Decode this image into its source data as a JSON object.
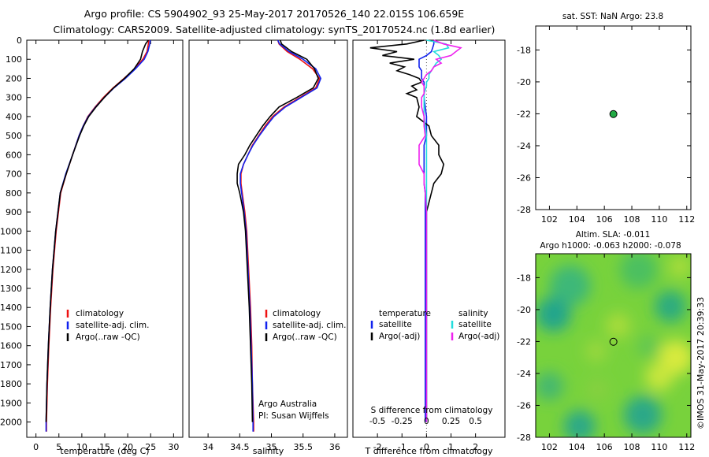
{
  "title_line1": "Argo profile: CS 5904902_93 25-May-2017 20170526_140 22.015S 106.659E",
  "title_line2": "Climatology: CARS2009. Satellite-adjusted climatology: synTS_20170524.nc (1.8d earlier)",
  "colors": {
    "climatology": "#ee1111",
    "satellite": "#1122ee",
    "argo": "#000000",
    "sat_salinity": "#22dddd",
    "argo_adj_salinity": "#ee22ee",
    "map_marker": "#22aa44"
  },
  "chart_data": [
    {
      "type": "line",
      "name": "temperature-profile",
      "xlabel": "temperature (deg C)",
      "ylabel": "",
      "xlim": [
        -2,
        32
      ],
      "ylim": [
        2080,
        0
      ],
      "xticks": [
        0,
        5,
        10,
        15,
        20,
        25,
        30
      ],
      "yticks": [
        0,
        100,
        200,
        300,
        400,
        500,
        600,
        700,
        800,
        900,
        1000,
        1100,
        1200,
        1300,
        1400,
        1500,
        1600,
        1700,
        1800,
        1900,
        2000
      ],
      "legend": [
        "climatology",
        "satellite-adj. clim.",
        "Argo(..raw -QC)"
      ],
      "depth": [
        0,
        20,
        60,
        100,
        150,
        200,
        250,
        300,
        350,
        400,
        450,
        500,
        600,
        700,
        800,
        900,
        1000,
        1200,
        1400,
        1600,
        1800,
        2000,
        2050
      ],
      "series": [
        {
          "name": "climatology",
          "values": [
            24.6,
            24.5,
            24.2,
            23.3,
            21.5,
            19.2,
            16.8,
            14.7,
            12.9,
            11.3,
            10.3,
            9.4,
            8.0,
            6.6,
            5.4,
            4.9,
            4.4,
            3.7,
            3.2,
            2.8,
            2.5,
            2.3,
            2.3
          ]
        },
        {
          "name": "satellite-adj. clim.",
          "values": [
            24.9,
            24.8,
            24.4,
            23.6,
            21.7,
            19.5,
            17.0,
            14.9,
            13.0,
            11.4,
            10.3,
            9.4,
            8.0,
            6.5,
            5.3,
            4.8,
            4.3,
            3.6,
            3.1,
            2.7,
            2.4,
            2.2,
            2.2
          ]
        },
        {
          "name": "Argo(..raw -QC)",
          "values": [
            24.5,
            23.9,
            23.2,
            22.8,
            21.4,
            19.3,
            16.9,
            14.9,
            13.1,
            11.5,
            10.4,
            9.5,
            8.0,
            6.6,
            5.3,
            4.8,
            4.3,
            3.6,
            3.1,
            2.7,
            2.4,
            2.2,
            null
          ]
        }
      ]
    },
    {
      "type": "line",
      "name": "salinity-profile",
      "xlabel": "salinity",
      "xlim": [
        33.7,
        36.2
      ],
      "ylim": [
        2080,
        0
      ],
      "xticks": [
        34,
        34.5,
        35,
        35.5,
        36
      ],
      "legend": [
        "climatology",
        "satellite-adj. clim.",
        "Argo(..raw -QC)"
      ],
      "annotation": [
        "Argo Australia",
        "PI: Susan Wijffels"
      ],
      "depth": [
        0,
        20,
        60,
        100,
        150,
        200,
        250,
        300,
        350,
        400,
        450,
        500,
        550,
        600,
        650,
        700,
        750,
        800,
        900,
        1000,
        1200,
        1400,
        1600,
        1800,
        2000,
        2050
      ],
      "series": [
        {
          "name": "climatology",
          "values": [
            35.1,
            35.12,
            35.25,
            35.45,
            35.65,
            35.76,
            35.7,
            35.45,
            35.2,
            35.02,
            34.9,
            34.8,
            34.7,
            34.63,
            34.56,
            34.52,
            34.52,
            34.54,
            34.58,
            34.61,
            34.64,
            34.67,
            34.69,
            34.7,
            34.72,
            34.72
          ]
        },
        {
          "name": "satellite-adj. clim.",
          "values": [
            35.1,
            35.13,
            35.28,
            35.5,
            35.7,
            35.78,
            35.72,
            35.47,
            35.22,
            35.04,
            34.92,
            34.81,
            34.71,
            34.63,
            34.56,
            34.51,
            34.51,
            34.53,
            34.57,
            34.6,
            34.63,
            34.66,
            34.68,
            34.7,
            34.71,
            34.71
          ]
        },
        {
          "name": "Argo(..raw -QC)",
          "values": [
            35.14,
            35.16,
            35.32,
            35.56,
            35.68,
            35.74,
            35.66,
            35.4,
            35.12,
            34.98,
            34.86,
            34.76,
            34.66,
            34.58,
            34.48,
            34.46,
            34.46,
            34.5,
            34.56,
            34.59,
            34.62,
            34.65,
            34.67,
            34.69,
            34.7,
            null
          ]
        }
      ]
    },
    {
      "type": "line",
      "name": "difference-profile",
      "xlabel": "T difference from climatology",
      "xlabel_top": "S difference from climatology",
      "xlim": [
        -3,
        3.2
      ],
      "ylim": [
        2080,
        0
      ],
      "xticks": [
        -2,
        -1,
        0,
        1,
        2
      ],
      "s_tick_labels": [
        "-0.5",
        "-0.25",
        "0",
        "0.25",
        "0.5"
      ],
      "s_tick_positions": [
        -2,
        -1,
        0,
        1,
        2
      ],
      "legend_temperature": {
        "heading": "temperature",
        "items": [
          "satellite",
          "Argo(-adj)"
        ]
      },
      "legend_salinity": {
        "heading": "salinity",
        "items": [
          "satellite",
          "Argo(-adj)"
        ]
      },
      "depth": [
        0,
        20,
        40,
        60,
        80,
        100,
        120,
        140,
        160,
        180,
        200,
        220,
        240,
        260,
        280,
        300,
        350,
        400,
        450,
        500,
        550,
        600,
        650,
        700,
        750,
        800,
        900,
        1000,
        1200,
        1400,
        1600,
        1800,
        2000
      ],
      "series": [
        {
          "name": "temperature satellite",
          "values": [
            0.3,
            0.3,
            0.25,
            0.2,
            0.0,
            -0.3,
            -0.3,
            -0.3,
            -0.2,
            -0.2,
            -0.2,
            -0.1,
            -0.1,
            -0.1,
            -0.1,
            -0.1,
            -0.05,
            0,
            0,
            0,
            -0.1,
            -0.1,
            -0.1,
            -0.1,
            -0.1,
            -0.05,
            -0.05,
            -0.05,
            -0.05,
            -0.05,
            -0.05,
            -0.05,
            -0.05
          ]
        },
        {
          "name": "temperature Argo(-adj)",
          "values": [
            -0.1,
            -0.8,
            -2.3,
            -1.2,
            -1.8,
            -0.5,
            -1.5,
            -0.9,
            -1.2,
            -0.7,
            -0.3,
            -0.2,
            -0.6,
            -0.4,
            -0.8,
            -0.4,
            -0.3,
            -0.4,
            0.1,
            0.2,
            0.5,
            0.5,
            0.7,
            0.6,
            0.3,
            0.2,
            0.0,
            0.0,
            0.0,
            0.0,
            0.0,
            0.0,
            0.0
          ]
        },
        {
          "name": "salinity satellite",
          "values": [
            0.0,
            0.8,
            0.9,
            0.3,
            0.5,
            0.6,
            0.4,
            0.3,
            0.2,
            0.1,
            0.1,
            0.0,
            0.0,
            -0.05,
            -0.1,
            -0.1,
            -0.1,
            -0.1,
            -0.05,
            0,
            0,
            0,
            0,
            0,
            0,
            0,
            0,
            0,
            0,
            0,
            0,
            0,
            0
          ]
        },
        {
          "name": "salinity Argo(-adj)",
          "values": [
            0.3,
            0.7,
            1.4,
            1.2,
            1.0,
            0.4,
            0.6,
            0.3,
            0.2,
            0.0,
            -0.1,
            -0.2,
            -0.1,
            -0.1,
            -0.1,
            -0.2,
            -0.2,
            -0.1,
            -0.1,
            -0.05,
            -0.3,
            -0.3,
            -0.3,
            -0.1,
            -0.1,
            -0.05,
            0,
            0,
            0,
            0,
            0,
            0,
            0
          ]
        }
      ]
    },
    {
      "type": "scatter",
      "name": "sst-map",
      "title": "sat. SST: NaN Argo: 23.8",
      "xlim": [
        101,
        112.3
      ],
      "ylim": [
        -28,
        -16.5
      ],
      "xticks": [
        102,
        104,
        106,
        108,
        110,
        112
      ],
      "yticks": [
        -18,
        -20,
        -22,
        -24,
        -26,
        -28
      ],
      "point": {
        "x": 106.659,
        "y": -22.015
      }
    },
    {
      "type": "heatmap",
      "name": "sla-map",
      "title_line1": "Altim. SLA: -0.011",
      "title_line2": "Argo h1000: -0.063 h2000: -0.078",
      "xlim": [
        101,
        112.3
      ],
      "ylim": [
        -28,
        -16.5
      ],
      "xticks": [
        102,
        104,
        106,
        108,
        110,
        112
      ],
      "yticks": [
        -18,
        -20,
        -22,
        -24,
        -26,
        -28
      ],
      "point": {
        "x": 106.659,
        "y": -22.015
      }
    }
  ],
  "credit": "©IMOS 31-May-2017 20:39:33"
}
